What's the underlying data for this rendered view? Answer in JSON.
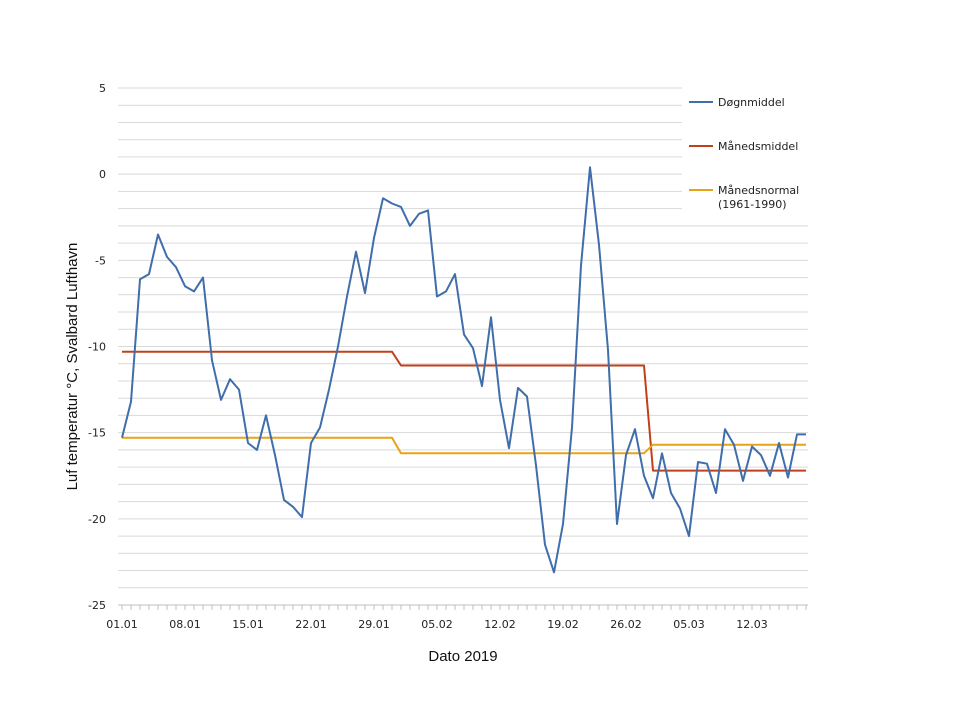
{
  "chart_data": {
    "type": "line",
    "title": "",
    "xlabel": "Dato 2019",
    "ylabel": "Luf temperatur  °C, Svalbard Lufthavn",
    "ylim": [
      -25,
      5
    ],
    "yticks": [
      "5",
      "0",
      "-5",
      "-10",
      "-15",
      "-20",
      "-25"
    ],
    "x_tick_labels": [
      "01.01",
      "08.01",
      "15.01",
      "22.01",
      "29.01",
      "05.02",
      "12.02",
      "19.02",
      "26.02",
      "05.03",
      "12.03"
    ],
    "x_tick_days": [
      1,
      8,
      15,
      22,
      29,
      36,
      43,
      50,
      57,
      64,
      71
    ],
    "x_range": [
      1,
      77
    ],
    "grid": "horizontal",
    "legend_position": "top-right",
    "series": [
      {
        "name": "Døgnmiddel",
        "color": "#3f6eab",
        "x": [
          1,
          2,
          3,
          4,
          5,
          6,
          7,
          8,
          9,
          10,
          11,
          12,
          13,
          14,
          15,
          16,
          17,
          18,
          19,
          20,
          21,
          22,
          23,
          24,
          25,
          26,
          27,
          28,
          29,
          30,
          31,
          32,
          33,
          34,
          35,
          36,
          37,
          38,
          39,
          40,
          41,
          42,
          43,
          44,
          45,
          46,
          47,
          48,
          49,
          50,
          51,
          52,
          53,
          54,
          55,
          56,
          57,
          58,
          59,
          60,
          61,
          62,
          63,
          64,
          65,
          66,
          67,
          68,
          69,
          70,
          71,
          72,
          73,
          74,
          75,
          76,
          77
        ],
        "values": [
          -15.3,
          -13.2,
          -6.1,
          -5.8,
          -3.5,
          -4.8,
          -5.4,
          -6.5,
          -6.8,
          -6.0,
          -10.8,
          -13.1,
          -11.9,
          -12.5,
          -15.6,
          -16.0,
          -14.0,
          -16.3,
          -18.9,
          -19.3,
          -19.9,
          -15.6,
          -14.7,
          -12.5,
          -10.0,
          -7.1,
          -4.5,
          -6.9,
          -3.7,
          -1.4,
          -1.7,
          -1.9,
          -3.0,
          -2.3,
          -2.1,
          -7.1,
          -6.8,
          -5.8,
          -9.3,
          -10.1,
          -12.3,
          -8.3,
          -13.1,
          -15.9,
          -12.4,
          -12.9,
          -16.9,
          -21.5,
          -23.1,
          -20.3,
          -14.7,
          -5.3,
          0.4,
          -4.1,
          -10.2,
          -20.3,
          -16.3,
          -14.8,
          -17.5,
          -18.8,
          -16.2,
          -18.5,
          -19.4,
          -21.0,
          -16.7,
          -16.8,
          -18.5,
          -14.8,
          -15.7,
          -17.8,
          -15.8,
          -16.3,
          -17.5,
          -15.6,
          -17.6,
          -15.1,
          -15.1
        ]
      },
      {
        "name": "Månedsmiddel",
        "color": "#c0401b",
        "x": [
          1,
          31,
          32,
          59,
          60,
          77
        ],
        "values": [
          -10.3,
          -10.3,
          -11.1,
          -11.1,
          -17.2,
          -17.2
        ]
      },
      {
        "name": "Månedsnormal",
        "name_line2": "(1961-1990)",
        "color": "#e8a317",
        "x": [
          1,
          31,
          32,
          59,
          60,
          77
        ],
        "values": [
          -15.3,
          -15.3,
          -16.2,
          -16.2,
          -15.7,
          -15.7
        ]
      }
    ]
  }
}
